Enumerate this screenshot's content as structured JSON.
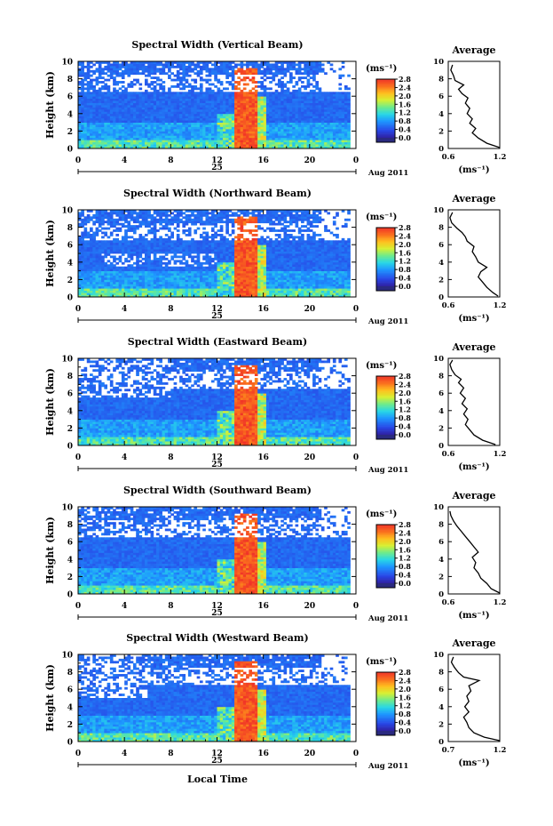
{
  "figure": {
    "xlabel": "Local Time",
    "ylabel": "Height (km)",
    "unit": "(ms⁻¹)",
    "date_label": "Aug 2011",
    "day_label": "25",
    "avg_title": "Average",
    "avg_xlabel": "(ms⁻¹)"
  },
  "chart_data": [
    {
      "type": "heatmap",
      "title": "Spectral Width (Vertical Beam)",
      "xlim": [
        0,
        24
      ],
      "ylim": [
        0,
        10
      ],
      "xticks": [
        "0",
        "4",
        "8",
        "12",
        "16",
        "20",
        "0"
      ],
      "yticks": [
        "0",
        "2",
        "4",
        "6",
        "8",
        "10"
      ],
      "colorbar": {
        "min": 0,
        "max": 2.8,
        "labels": [
          "2.8",
          "2.4",
          "2.0",
          "1.6",
          "1.2",
          "0.8",
          "0.4",
          "0.0"
        ]
      },
      "average": {
        "xlim": [
          0.6,
          1.2
        ],
        "xticks": [
          "0.6",
          "1.2"
        ],
        "yticks": [
          "0",
          "2",
          "4",
          "6",
          "8",
          "10"
        ],
        "profile": [
          [
            1.2,
            0.1
          ],
          [
            1.05,
            0.6
          ],
          [
            0.95,
            1.2
          ],
          [
            0.88,
            1.8
          ],
          [
            0.92,
            2.3
          ],
          [
            0.85,
            2.9
          ],
          [
            0.88,
            3.4
          ],
          [
            0.82,
            4.0
          ],
          [
            0.85,
            4.6
          ],
          [
            0.8,
            5.2
          ],
          [
            0.83,
            5.8
          ],
          [
            0.76,
            6.3
          ],
          [
            0.72,
            6.8
          ],
          [
            0.78,
            7.3
          ],
          [
            0.68,
            7.8
          ],
          [
            0.66,
            8.4
          ],
          [
            0.63,
            9.0
          ],
          [
            0.65,
            9.6
          ]
        ]
      }
    },
    {
      "type": "heatmap",
      "title": "Spectral Width (Northward Beam)",
      "xlim": [
        0,
        24
      ],
      "ylim": [
        0,
        10
      ],
      "xticks": [
        "0",
        "4",
        "8",
        "12",
        "16",
        "20",
        "0"
      ],
      "yticks": [
        "0",
        "2",
        "4",
        "6",
        "8",
        "10"
      ],
      "colorbar": {
        "min": 0,
        "max": 2.8,
        "labels": [
          "2.8",
          "2.4",
          "2.0",
          "1.6",
          "1.2",
          "0.8",
          "0.4",
          "0.0"
        ]
      },
      "average": {
        "xlim": [
          0.6,
          1.2
        ],
        "xticks": [
          "0.6",
          "1.2"
        ],
        "yticks": [
          "0",
          "2",
          "4",
          "6",
          "8",
          "10"
        ],
        "profile": [
          [
            1.18,
            0.1
          ],
          [
            1.12,
            0.5
          ],
          [
            1.05,
            1.1
          ],
          [
            1.0,
            1.7
          ],
          [
            0.95,
            2.3
          ],
          [
            0.98,
            2.9
          ],
          [
            1.05,
            3.4
          ],
          [
            0.95,
            4.0
          ],
          [
            0.92,
            4.6
          ],
          [
            0.88,
            5.2
          ],
          [
            0.9,
            5.8
          ],
          [
            0.82,
            6.4
          ],
          [
            0.8,
            6.9
          ],
          [
            0.76,
            7.4
          ],
          [
            0.7,
            7.9
          ],
          [
            0.64,
            8.5
          ],
          [
            0.62,
            9.1
          ],
          [
            0.65,
            9.7
          ]
        ]
      }
    },
    {
      "type": "heatmap",
      "title": "Spectral Width (Eastward Beam)",
      "xlim": [
        0,
        24
      ],
      "ylim": [
        0,
        10
      ],
      "xticks": [
        "0",
        "4",
        "8",
        "12",
        "16",
        "20",
        "0"
      ],
      "yticks": [
        "0",
        "2",
        "4",
        "6",
        "8",
        "10"
      ],
      "colorbar": {
        "min": 0,
        "max": 2.8,
        "labels": [
          "2.8",
          "2.4",
          "2.0",
          "1.6",
          "1.2",
          "0.8",
          "0.4",
          "0.0"
        ]
      },
      "average": {
        "xlim": [
          0.6,
          1.2
        ],
        "xticks": [
          "0.6",
          "1.2"
        ],
        "yticks": [
          "0",
          "2",
          "4",
          "6",
          "8",
          "10"
        ],
        "profile": [
          [
            1.15,
            0.1
          ],
          [
            1.0,
            0.6
          ],
          [
            0.9,
            1.2
          ],
          [
            0.85,
            1.8
          ],
          [
            0.8,
            2.4
          ],
          [
            0.83,
            3.0
          ],
          [
            0.78,
            3.6
          ],
          [
            0.82,
            4.2
          ],
          [
            0.76,
            4.8
          ],
          [
            0.8,
            5.4
          ],
          [
            0.74,
            6.0
          ],
          [
            0.78,
            6.6
          ],
          [
            0.72,
            7.2
          ],
          [
            0.75,
            7.6
          ],
          [
            0.68,
            8.1
          ],
          [
            0.64,
            8.7
          ],
          [
            0.62,
            9.3
          ],
          [
            0.65,
            9.8
          ]
        ]
      }
    },
    {
      "type": "heatmap",
      "title": "Spectral Width (Southward Beam)",
      "xlim": [
        0,
        24
      ],
      "ylim": [
        0,
        10
      ],
      "xticks": [
        "0",
        "4",
        "8",
        "12",
        "16",
        "20",
        "0"
      ],
      "yticks": [
        "0",
        "2",
        "4",
        "6",
        "8",
        "10"
      ],
      "colorbar": {
        "min": 0,
        "max": 2.8,
        "labels": [
          "2.8",
          "2.4",
          "2.0",
          "1.6",
          "1.2",
          "0.8",
          "0.4",
          "0.0"
        ]
      },
      "average": {
        "xlim": [
          0.6,
          1.2
        ],
        "xticks": [
          "0.6",
          "1.2"
        ],
        "yticks": [
          "0",
          "2",
          "4",
          "6",
          "8",
          "10"
        ],
        "profile": [
          [
            1.2,
            0.1
          ],
          [
            1.1,
            0.6
          ],
          [
            1.05,
            1.2
          ],
          [
            0.98,
            1.8
          ],
          [
            0.95,
            2.4
          ],
          [
            0.9,
            3.0
          ],
          [
            0.92,
            3.6
          ],
          [
            0.88,
            4.2
          ],
          [
            0.95,
            4.8
          ],
          [
            0.9,
            5.4
          ],
          [
            0.85,
            6.0
          ],
          [
            0.8,
            6.6
          ],
          [
            0.75,
            7.2
          ],
          [
            0.7,
            7.8
          ],
          [
            0.66,
            8.4
          ],
          [
            0.63,
            9.0
          ],
          [
            0.62,
            9.5
          ]
        ]
      }
    },
    {
      "type": "heatmap",
      "title": "Spectral Width (Westward Beam)",
      "xlim": [
        0,
        24
      ],
      "ylim": [
        0,
        10
      ],
      "xticks": [
        "0",
        "4",
        "8",
        "12",
        "16",
        "20",
        "0"
      ],
      "yticks": [
        "0",
        "2",
        "4",
        "6",
        "8",
        "10"
      ],
      "colorbar": {
        "min": 0,
        "max": 2.8,
        "labels": [
          "2.8",
          "2.4",
          "2.0",
          "1.6",
          "1.2",
          "0.8",
          "0.4",
          "0.0"
        ]
      },
      "average": {
        "xlim": [
          0.7,
          1.2
        ],
        "xticks": [
          "0.7",
          "1.2"
        ],
        "yticks": [
          "0",
          "2",
          "4",
          "6",
          "8",
          "10"
        ],
        "profile": [
          [
            1.2,
            0.1
          ],
          [
            1.05,
            0.5
          ],
          [
            0.95,
            1.0
          ],
          [
            0.9,
            1.6
          ],
          [
            0.88,
            2.2
          ],
          [
            0.85,
            2.8
          ],
          [
            0.9,
            3.4
          ],
          [
            0.86,
            4.0
          ],
          [
            0.9,
            4.6
          ],
          [
            0.88,
            5.2
          ],
          [
            0.92,
            5.8
          ],
          [
            0.9,
            6.4
          ],
          [
            1.0,
            7.0
          ],
          [
            0.85,
            7.4
          ],
          [
            0.8,
            7.9
          ],
          [
            0.76,
            8.5
          ],
          [
            0.73,
            9.1
          ],
          [
            0.75,
            9.7
          ]
        ]
      }
    }
  ]
}
